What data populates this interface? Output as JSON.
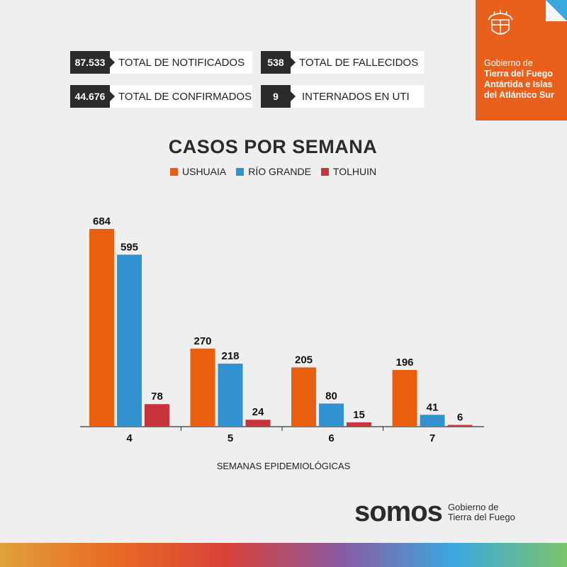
{
  "stats": [
    {
      "value": "87.533",
      "label": "TOTAL DE NOTIFICADOS"
    },
    {
      "value": "538",
      "label": "TOTAL DE FALLECIDOS"
    },
    {
      "value": "44.676",
      "label": "TOTAL DE CONFIRMADOS"
    },
    {
      "value": "9",
      "label": "INTERNADOS EN UTI"
    }
  ],
  "government": {
    "line1": "Gobierno de",
    "line2": "Tierra del Fuego",
    "line3": "Antártida e Islas",
    "line4": "del Atlántico Sur"
  },
  "footer": {
    "brand": "somos",
    "sub1": "Gobierno de",
    "sub2": "Tierra del Fuego"
  },
  "colors": {
    "ushuaia": "#e8600f",
    "rio_grande": "#3292d0",
    "tolhuin": "#c8343c"
  },
  "chart_data": {
    "type": "bar",
    "title": "CASOS POR SEMANA",
    "xlabel": "SEMANAS EPIDEMIOLÓGICAS",
    "ylabel": "",
    "categories": [
      "4",
      "5",
      "6",
      "7"
    ],
    "series": [
      {
        "name": "USHUAIA",
        "values": [
          684,
          270,
          205,
          196
        ]
      },
      {
        "name": "RÍO GRANDE",
        "values": [
          595,
          218,
          80,
          41
        ]
      },
      {
        "name": "TOLHUIN",
        "values": [
          78,
          24,
          15,
          6
        ]
      }
    ],
    "ylim": [
      0,
      684
    ],
    "grid": false,
    "legend": "top-center"
  }
}
